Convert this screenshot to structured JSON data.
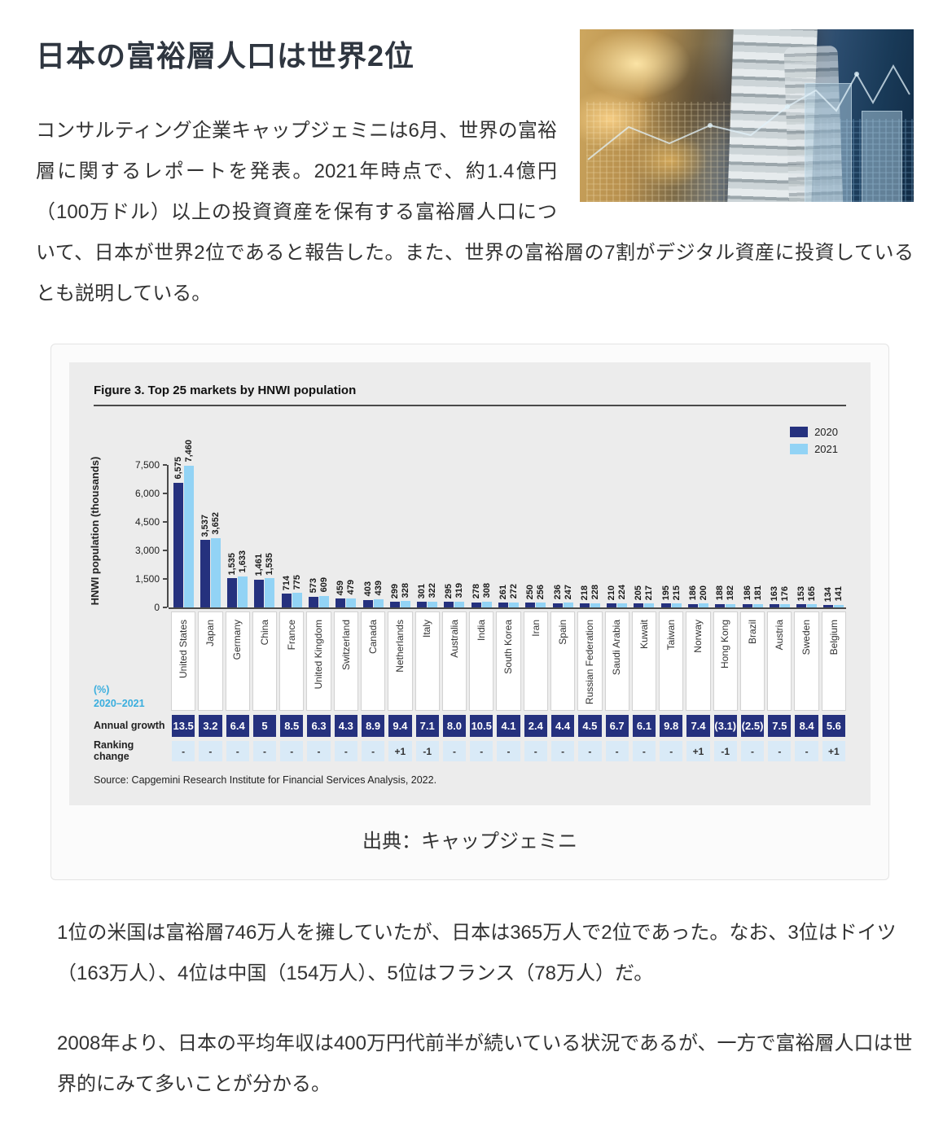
{
  "article": {
    "title": "日本の富裕層人口は世界2位",
    "intro": "コンサルティング企業キャップジェミニは6月、世界の富裕層に関するレポートを発表。2021年時点で、約1.4億円（100万ドル）以上の投資資産を保有する富裕層人口について、日本が世界2位であると報告した。また、世界の富裕層の7割がデジタル資産に投資しているとも説明している。",
    "chart_caption": "出典：キャップジェミニ",
    "paragraph1": "1位の米国は富裕層746万人を擁していたが、日本は365万人で2位であった。なお、3位はドイツ（163万人）、4位は中国（154万人）、5位はフランス（78万人）だ。",
    "paragraph2": "2008年より、日本の平均年収は400万円代前半が続いている状況であるが、一方で富裕層人口は世界的にみて多いことが分かる。"
  },
  "chart_data": {
    "type": "bar",
    "title": "Figure 3. Top 25 markets by HNWI population",
    "ylabel": "HNWI population (thousands)",
    "ylim": [
      0,
      7500
    ],
    "yticks": [
      0,
      1500,
      3000,
      4500,
      6000,
      7500
    ],
    "grid": false,
    "legend_position": "top-right",
    "legend": [
      {
        "label": "2020",
        "color": "#25317e"
      },
      {
        "label": "2021",
        "color": "#92d3f5"
      }
    ],
    "categories": [
      "United States",
      "Japan",
      "Germany",
      "China",
      "France",
      "United Kingdom",
      "Switzerland",
      "Canada",
      "Netherlands",
      "Italy",
      "Australia",
      "India",
      "South Korea",
      "Iran",
      "Spain",
      "Russian Federation",
      "Saudi Arabia",
      "Kuwait",
      "Taiwan",
      "Norway",
      "Hong Kong",
      "Brazil",
      "Austria",
      "Sweden",
      "Belgium"
    ],
    "series": [
      {
        "name": "2020",
        "values": [
          6575,
          3537,
          1535,
          1461,
          714,
          573,
          459,
          403,
          299,
          301,
          295,
          278,
          261,
          250,
          236,
          218,
          210,
          205,
          195,
          186,
          188,
          186,
          163,
          153,
          134
        ]
      },
      {
        "name": "2021",
        "values": [
          7460,
          3652,
          1633,
          1535,
          775,
          609,
          479,
          439,
          328,
          322,
          319,
          308,
          272,
          256,
          247,
          228,
          224,
          217,
          215,
          200,
          182,
          181,
          176,
          165,
          141
        ]
      }
    ],
    "pct_line1": "(%)",
    "pct_line2": "2020–2021",
    "growth_row_label": "Annual growth",
    "ranking_row_label": "Ranking change",
    "annual_growth": [
      "13.5",
      "3.2",
      "6.4",
      "5",
      "8.5",
      "6.3",
      "4.3",
      "8.9",
      "9.4",
      "7.1",
      "8.0",
      "10.5",
      "4.1",
      "2.4",
      "4.4",
      "4.5",
      "6.7",
      "6.1",
      "9.8",
      "7.4",
      "(3.1)",
      "(2.5)",
      "7.5",
      "8.4",
      "5.6"
    ],
    "ranking_change": [
      "-",
      "-",
      "-",
      "-",
      "-",
      "-",
      "-",
      "-",
      "+1",
      "-1",
      "-",
      "-",
      "-",
      "-",
      "-",
      "-",
      "-",
      "-",
      "-",
      "+1",
      "-1",
      "-",
      "-",
      "-",
      "+1"
    ],
    "source": "Source: Capgemini Research Institute for Financial Services Analysis, 2022."
  },
  "colors": {
    "bar_2020": "#25317e",
    "bar_2021": "#92d3f5",
    "pct_accent": "#3aaede",
    "figure_bg": "#ececec"
  }
}
